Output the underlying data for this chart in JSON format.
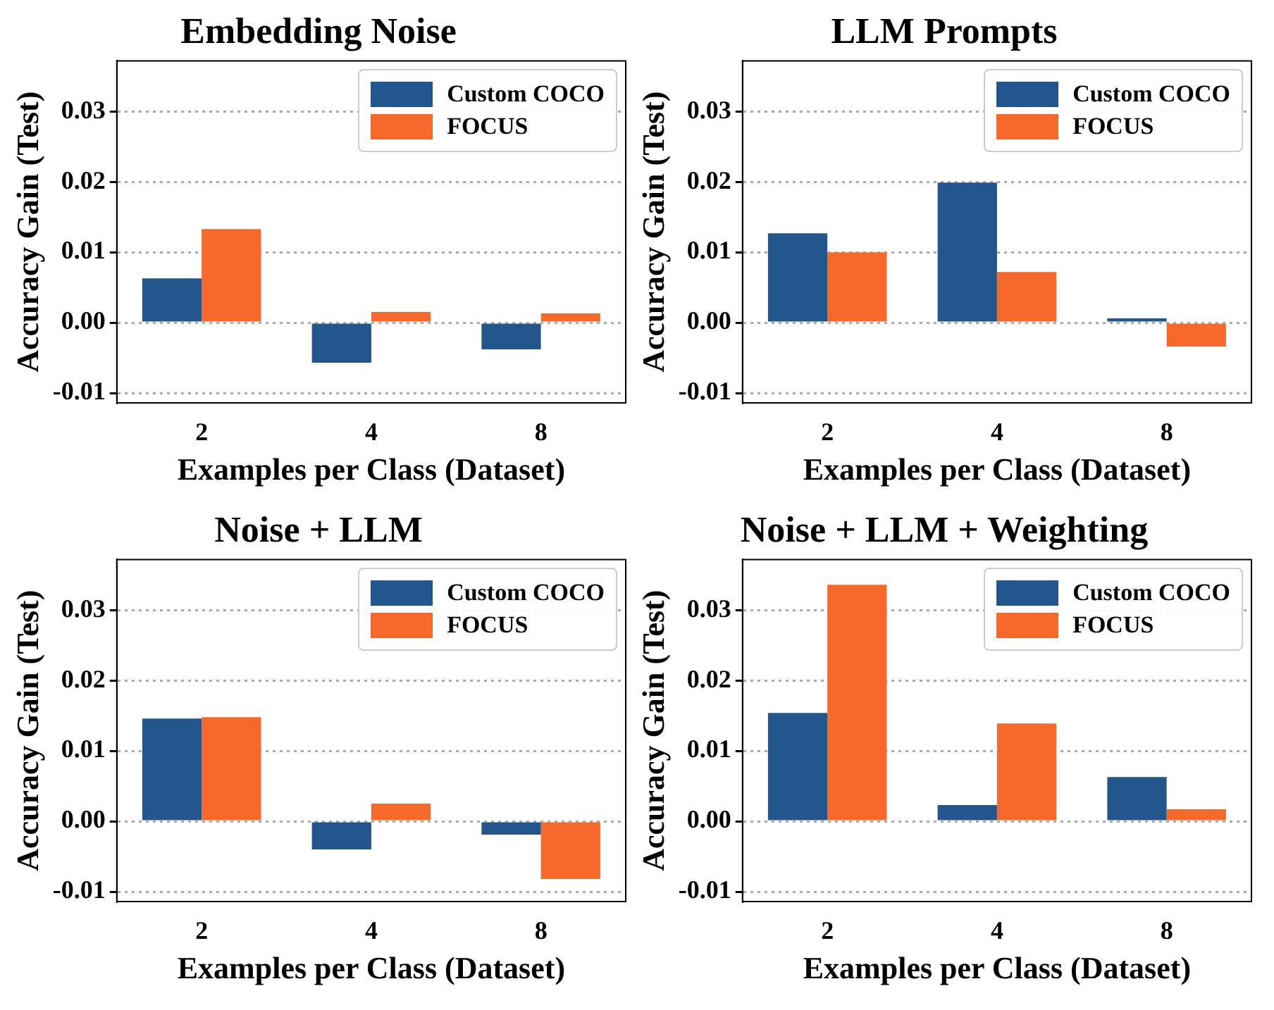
{
  "chart_data": [
    {
      "type": "bar",
      "title": "Embedding Noise",
      "xlabel": "Examples per Class (Dataset)",
      "ylabel": "Accuracy Gain (Test)",
      "categories": [
        "2",
        "4",
        "8"
      ],
      "series": [
        {
          "name": "Custom COCO",
          "color": "#22568c",
          "values": [
            0.0063,
            -0.0057,
            -0.0038
          ]
        },
        {
          "name": "FOCUS",
          "color": "#f7692a",
          "values": [
            0.0133,
            0.0015,
            0.0013
          ]
        }
      ],
      "ylim": [
        -0.0114,
        0.0372
      ],
      "yticks": [
        {
          "value": -0.01,
          "label": "-0.01"
        },
        {
          "value": 0,
          "label": "0.00"
        },
        {
          "value": 0.01,
          "label": "0.01"
        },
        {
          "value": 0.02,
          "label": "0.02"
        },
        {
          "value": 0.03,
          "label": "0.03"
        }
      ],
      "grid": "y",
      "legend": "top right"
    },
    {
      "type": "bar",
      "title": "LLM Prompts",
      "xlabel": "Examples per Class (Dataset)",
      "ylabel": "Accuracy Gain (Test)",
      "categories": [
        "2",
        "4",
        "8"
      ],
      "series": [
        {
          "name": "Custom COCO",
          "color": "#22568c",
          "values": [
            0.0127,
            0.0199,
            0.0006
          ]
        },
        {
          "name": "FOCUS",
          "color": "#f7692a",
          "values": [
            0.01,
            0.0072,
            -0.0034
          ]
        }
      ],
      "ylim": [
        -0.0114,
        0.0372
      ],
      "yticks": [
        {
          "value": -0.01,
          "label": "-0.01"
        },
        {
          "value": 0,
          "label": "0.00"
        },
        {
          "value": 0.01,
          "label": "0.01"
        },
        {
          "value": 0.02,
          "label": "0.02"
        },
        {
          "value": 0.03,
          "label": "0.03"
        }
      ],
      "grid": "y",
      "legend": "top right"
    },
    {
      "type": "bar",
      "title": "Noise + LLM",
      "xlabel": "Examples per Class (Dataset)",
      "ylabel": "Accuracy Gain (Test)",
      "categories": [
        "2",
        "4",
        "8"
      ],
      "series": [
        {
          "name": "Custom COCO",
          "color": "#22568c",
          "values": [
            0.0146,
            -0.004,
            -0.0019
          ]
        },
        {
          "name": "FOCUS",
          "color": "#f7692a",
          "values": [
            0.0148,
            0.0025,
            -0.0082
          ]
        }
      ],
      "ylim": [
        -0.0114,
        0.0372
      ],
      "yticks": [
        {
          "value": -0.01,
          "label": "-0.01"
        },
        {
          "value": 0,
          "label": "0.00"
        },
        {
          "value": 0.01,
          "label": "0.01"
        },
        {
          "value": 0.02,
          "label": "0.02"
        },
        {
          "value": 0.03,
          "label": "0.03"
        }
      ],
      "grid": "y",
      "legend": "top right"
    },
    {
      "type": "bar",
      "title": "Noise + LLM + Weighting",
      "xlabel": "Examples per Class (Dataset)",
      "ylabel": "Accuracy Gain (Test)",
      "categories": [
        "2",
        "4",
        "8"
      ],
      "series": [
        {
          "name": "Custom COCO",
          "color": "#22568c",
          "values": [
            0.0154,
            0.0023,
            0.0063
          ]
        },
        {
          "name": "FOCUS",
          "color": "#f7692a",
          "values": [
            0.0336,
            0.0139,
            0.0017
          ]
        }
      ],
      "ylim": [
        -0.0114,
        0.0372
      ],
      "yticks": [
        {
          "value": -0.01,
          "label": "-0.01"
        },
        {
          "value": 0,
          "label": "0.00"
        },
        {
          "value": 0.01,
          "label": "0.01"
        },
        {
          "value": 0.02,
          "label": "0.02"
        },
        {
          "value": 0.03,
          "label": "0.03"
        }
      ],
      "grid": "y",
      "legend": "top right"
    }
  ]
}
